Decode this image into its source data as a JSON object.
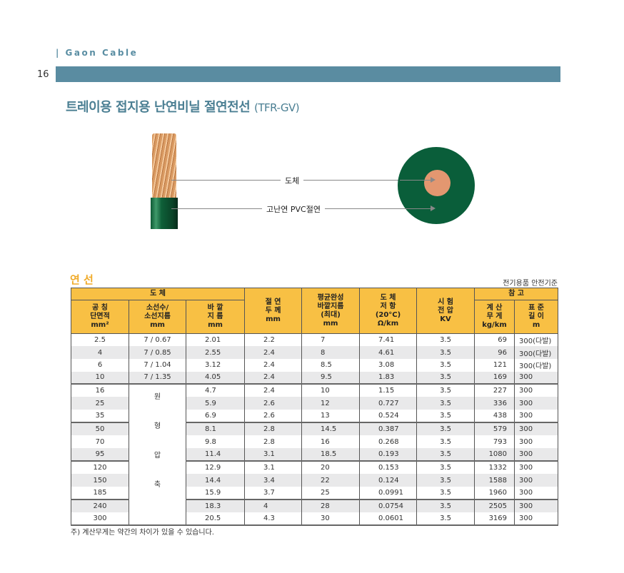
{
  "header": {
    "brand": "| Gaon Cable",
    "page_number": "16",
    "accent": "#5a8ca1"
  },
  "title": {
    "main": "트레이용 접지용 난연비닐 절연전선",
    "code": "(TFR-GV)"
  },
  "diagram": {
    "conductor_label": "도체",
    "insulation_label": "고난연 PVC절연",
    "insulation_color": "#0a5e3a",
    "conductor_color": "#e39770"
  },
  "section": {
    "title": "연 선",
    "standard": "전기용품 안전기준"
  },
  "table": {
    "group_conductor": "도 체",
    "group_reference": "참 고",
    "headers": {
      "area": [
        "공 칭",
        "단면적",
        "mm²"
      ],
      "strands": [
        "소선수/",
        "소선지름",
        "mm"
      ],
      "outer": [
        "바 깥",
        "지 름",
        "mm"
      ],
      "insul": [
        "절 연",
        "두 께",
        "mm"
      ],
      "avg_od": [
        "평균완성",
        "바깥지름",
        "(최대)",
        "mm"
      ],
      "resist": [
        "도 체",
        "저 항",
        "(20°C)",
        "Ω/km"
      ],
      "volt": [
        "시 험",
        "전 압",
        "KV"
      ],
      "weight": [
        "계 산",
        "무 게",
        "kg/km"
      ],
      "length": [
        "표 준",
        "길 이",
        "m"
      ]
    },
    "compressed_label": [
      "원",
      "형",
      "압",
      "축"
    ],
    "rows": [
      [
        "2.5",
        "7 / 0.67",
        "2.01",
        "2.2",
        "7",
        "7.41",
        "3.5",
        "69",
        "300(다발)"
      ],
      [
        "4",
        "7 / 0.85",
        "2.55",
        "2.4",
        "8",
        "4.61",
        "3.5",
        "96",
        "300(다발)"
      ],
      [
        "6",
        "7 / 1.04",
        "3.12",
        "2.4",
        "8.5",
        "3.08",
        "3.5",
        "121",
        "300(다발)"
      ],
      [
        "10",
        "7 / 1.35",
        "4.05",
        "2.4",
        "9.5",
        "1.83",
        "3.5",
        "169",
        "300"
      ],
      [
        "16",
        "",
        "4.7",
        "2.4",
        "10",
        "1.15",
        "3.5",
        "227",
        "300"
      ],
      [
        "25",
        "",
        "5.9",
        "2.6",
        "12",
        "0.727",
        "3.5",
        "336",
        "300"
      ],
      [
        "35",
        "",
        "6.9",
        "2.6",
        "13",
        "0.524",
        "3.5",
        "438",
        "300"
      ],
      [
        "50",
        "",
        "8.1",
        "2.8",
        "14.5",
        "0.387",
        "3.5",
        "579",
        "300"
      ],
      [
        "70",
        "",
        "9.8",
        "2.8",
        "16",
        "0.268",
        "3.5",
        "793",
        "300"
      ],
      [
        "95",
        "",
        "11.4",
        "3.1",
        "18.5",
        "0.193",
        "3.5",
        "1080",
        "300"
      ],
      [
        "120",
        "",
        "12.9",
        "3.1",
        "20",
        "0.153",
        "3.5",
        "1332",
        "300"
      ],
      [
        "150",
        "",
        "14.4",
        "3.4",
        "22",
        "0.124",
        "3.5",
        "1588",
        "300"
      ],
      [
        "185",
        "",
        "15.9",
        "3.7",
        "25",
        "0.0991",
        "3.5",
        "1960",
        "300"
      ],
      [
        "240",
        "",
        "18.3",
        "4",
        "28",
        "0.0754",
        "3.5",
        "2505",
        "300"
      ],
      [
        "300",
        "",
        "20.5",
        "4.3",
        "30",
        "0.0601",
        "3.5",
        "3169",
        "300"
      ]
    ]
  },
  "note": "주) 계산무게는 약간의 차이가 있을 수 있습니다."
}
